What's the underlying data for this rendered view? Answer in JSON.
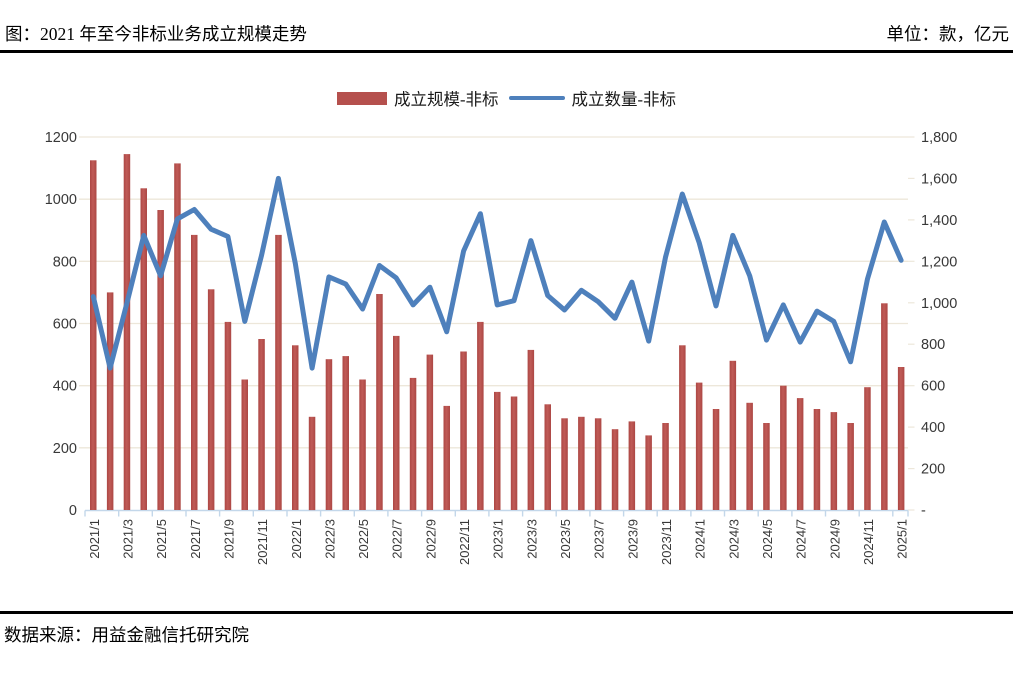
{
  "header": {
    "title": "图：2021 年至今非标业务成立规模走势",
    "unit_label": "单位：款，亿元"
  },
  "legend": [
    {
      "label": "成立规模-非标",
      "type": "bar",
      "color": "#B5504D"
    },
    {
      "label": "成立数量-非标",
      "type": "line",
      "color": "#4E80BC"
    }
  ],
  "footer": {
    "source": "数据来源：用益金融信托研究院"
  },
  "colors": {
    "bar": "#B5504D",
    "bar_edge": "#AC4744",
    "bar_mid": "#C05B57",
    "line": "#4E80BC",
    "gridline": "#EDE7DA",
    "axis_line": "#C3D7EA",
    "tick_text": "#383838"
  },
  "chart_data": {
    "type": "bar+line combo",
    "title": "2021年至今非标业务成立规模走势",
    "grid": true,
    "legend_position": "top",
    "categories": [
      "2021/1",
      "2021/2",
      "2021/3",
      "2021/4",
      "2021/5",
      "2021/6",
      "2021/7",
      "2021/8",
      "2021/9",
      "2021/10",
      "2021/11",
      "2021/12",
      "2022/1",
      "2022/2",
      "2022/3",
      "2022/4",
      "2022/5",
      "2022/6",
      "2022/7",
      "2022/8",
      "2022/9",
      "2022/10",
      "2022/11",
      "2022/12",
      "2023/1",
      "2023/2",
      "2023/3",
      "2023/4",
      "2023/5",
      "2023/6",
      "2023/7",
      "2023/8",
      "2023/9",
      "2023/10",
      "2023/11",
      "2023/12",
      "2024/1",
      "2024/2",
      "2024/3",
      "2024/4",
      "2024/5",
      "2024/6",
      "2024/7",
      "2024/8",
      "2024/9",
      "2024/10",
      "2024/11",
      "2024/12",
      "2025/1"
    ],
    "series": [
      {
        "name": "成立规模-非标",
        "type": "bar",
        "axis": "left",
        "unit": "亿元",
        "values": [
          1125,
          700,
          1145,
          1035,
          965,
          1115,
          885,
          710,
          605,
          420,
          550,
          885,
          530,
          300,
          485,
          495,
          420,
          695,
          560,
          425,
          500,
          335,
          510,
          605,
          380,
          365,
          515,
          340,
          295,
          300,
          295,
          260,
          285,
          240,
          280,
          530,
          410,
          325,
          480,
          345,
          280,
          400,
          360,
          325,
          315,
          280,
          395,
          665,
          460
        ]
      },
      {
        "name": "成立数量-非标",
        "type": "line",
        "axis": "right",
        "unit": "款",
        "values": [
          1030,
          685,
          1000,
          1325,
          1130,
          1405,
          1450,
          1355,
          1320,
          910,
          1230,
          1600,
          1190,
          685,
          1125,
          1090,
          970,
          1180,
          1120,
          990,
          1075,
          860,
          1250,
          1430,
          990,
          1010,
          1300,
          1035,
          965,
          1060,
          1005,
          925,
          1100,
          815,
          1220,
          1525,
          1290,
          985,
          1325,
          1130,
          820,
          990,
          810,
          960,
          910,
          715,
          1115,
          1390,
          1205
        ]
      }
    ],
    "left_axis": {
      "min": 0,
      "max": 1200,
      "step": 200,
      "tick_labels": [
        "1200",
        "1000",
        "800",
        "600",
        "400",
        "200",
        "0"
      ]
    },
    "right_axis": {
      "min": 0,
      "max": 1800,
      "step": 200,
      "tick_labels": [
        "1,800",
        "1,600",
        "1,400",
        "1,200",
        "1,000",
        "800",
        "600",
        "400",
        "200",
        "-"
      ]
    },
    "x_tick_labels": [
      "2021/1",
      "2021/3",
      "2021/5",
      "2021/7",
      "2021/9",
      "2021/11",
      "2022/1",
      "2022/3",
      "2022/5",
      "2022/7",
      "2022/9",
      "2022/11",
      "2023/1",
      "2023/3",
      "2023/5",
      "2023/7",
      "2023/9",
      "2023/11",
      "2024/1",
      "2024/3",
      "2024/5",
      "2024/7",
      "2024/9",
      "2024/11",
      "2025/1"
    ]
  }
}
